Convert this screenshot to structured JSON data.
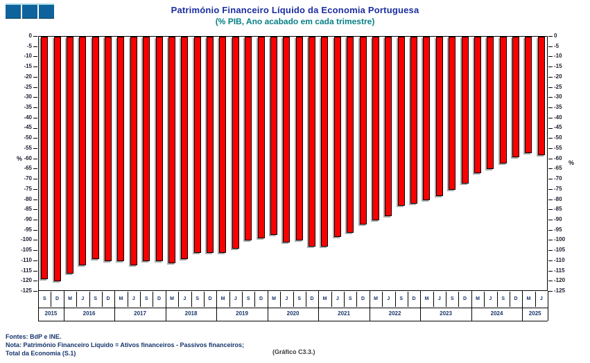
{
  "header": {
    "title": "Património Financeiro Líquido da Economia Portuguesa",
    "subtitle": "(% PIB, Ano acabado em cada trimestre)"
  },
  "logo": {
    "description": "three-blue-blocks-logo",
    "block_color": "#0e639c",
    "strip_color": "#a9dbe6",
    "blocks": 3
  },
  "axes": {
    "left_unit": "%",
    "right_unit": "%"
  },
  "footer": {
    "source": "Fontes: BdP e INE.",
    "note": "Nota: Património Financeiro Líquido = Ativos financeiros - Passivos financeiros;",
    "note2": "Total da Economia (S.1)",
    "chart_ref": "(Gráfico C3.3.)"
  },
  "chart_data": {
    "type": "bar",
    "title": "Património Financeiro Líquido da Economia Portuguesa",
    "subtitle": "(% PIB, Ano acabado em cada trimestre)",
    "ylabel": "%",
    "ylim": [
      -125,
      0
    ],
    "y_tick_step": 5,
    "grid": false,
    "legend": false,
    "bar_color": "#fa0000",
    "bar_border_color": "#000000",
    "bar_shadow_color": "#aaaaaa",
    "years": [
      {
        "year": "2015",
        "quarters": [
          "S",
          "D"
        ],
        "values": [
          -119,
          -120
        ]
      },
      {
        "year": "2016",
        "quarters": [
          "M",
          "J",
          "S",
          "D"
        ],
        "values": [
          -116,
          -112,
          -109,
          -110
        ]
      },
      {
        "year": "2017",
        "quarters": [
          "M",
          "J",
          "S",
          "D"
        ],
        "values": [
          -110,
          -112,
          -110,
          -110
        ]
      },
      {
        "year": "2018",
        "quarters": [
          "M",
          "J",
          "S",
          "D"
        ],
        "values": [
          -111,
          -109,
          -106,
          -106
        ]
      },
      {
        "year": "2019",
        "quarters": [
          "M",
          "J",
          "S",
          "D"
        ],
        "values": [
          -106,
          -104,
          -100,
          -99
        ]
      },
      {
        "year": "2020",
        "quarters": [
          "M",
          "J",
          "S",
          "D"
        ],
        "values": [
          -97,
          -101,
          -100,
          -103
        ]
      },
      {
        "year": "2021",
        "quarters": [
          "M",
          "J",
          "S",
          "D"
        ],
        "values": [
          -103,
          -98,
          -96,
          -92
        ]
      },
      {
        "year": "2022",
        "quarters": [
          "M",
          "J",
          "S",
          "D"
        ],
        "values": [
          -90,
          -88,
          -83,
          -82
        ]
      },
      {
        "year": "2023",
        "quarters": [
          "M",
          "J",
          "S",
          "D"
        ],
        "values": [
          -80,
          -78,
          -75,
          -72
        ]
      },
      {
        "year": "2024",
        "quarters": [
          "M",
          "J",
          "S",
          "D"
        ],
        "values": [
          -67,
          -65,
          -62,
          -59
        ]
      },
      {
        "year": "2025",
        "quarters": [
          "M",
          "J"
        ],
        "values": [
          -57,
          -58
        ]
      }
    ]
  }
}
